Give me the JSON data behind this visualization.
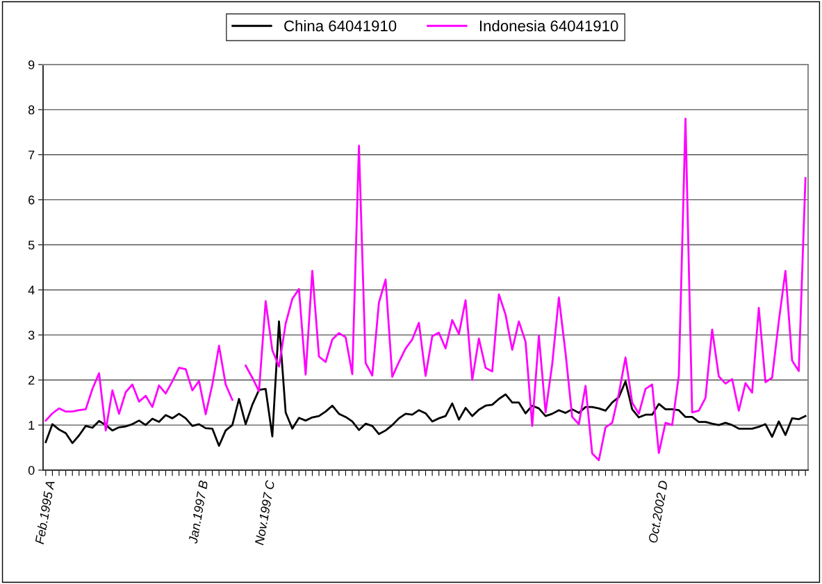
{
  "chart_data": {
    "type": "line",
    "categories": [
      "Feb.1995 A",
      null,
      null,
      null,
      null,
      null,
      null,
      null,
      null,
      null,
      null,
      null,
      null,
      null,
      null,
      null,
      null,
      null,
      null,
      null,
      null,
      null,
      null,
      "Jan.1997 B",
      null,
      null,
      null,
      null,
      null,
      null,
      null,
      null,
      null,
      "Nov.1997 C",
      null,
      null,
      null,
      null,
      null,
      null,
      null,
      null,
      null,
      null,
      null,
      null,
      null,
      null,
      null,
      null,
      null,
      null,
      null,
      null,
      null,
      null,
      null,
      null,
      null,
      null,
      null,
      null,
      null,
      null,
      null,
      null,
      null,
      null,
      null,
      null,
      null,
      null,
      null,
      null,
      null,
      null,
      null,
      null,
      null,
      null,
      null,
      null,
      null,
      null,
      null,
      null,
      null,
      null,
      null,
      null,
      null,
      null,
      "Oct.2002 D",
      null,
      null,
      null,
      null,
      null,
      null,
      null,
      null,
      null,
      null,
      null,
      null,
      null,
      null,
      null,
      null,
      null,
      null,
      null,
      null,
      null,
      null
    ],
    "series": [
      {
        "name": "China 64041910",
        "color": "#000000",
        "values": [
          0.62,
          1.02,
          0.9,
          0.82,
          0.6,
          0.77,
          0.98,
          0.94,
          1.09,
          1.0,
          0.88,
          0.95,
          0.97,
          1.02,
          1.1,
          1.0,
          1.14,
          1.07,
          1.22,
          1.15,
          1.25,
          1.15,
          0.98,
          1.02,
          0.93,
          0.92,
          0.54,
          0.88,
          1.0,
          1.58,
          1.02,
          1.45,
          1.78,
          1.8,
          0.75,
          3.3,
          1.28,
          0.92,
          1.16,
          1.1,
          1.17,
          1.2,
          1.3,
          1.43,
          1.25,
          1.18,
          1.08,
          0.89,
          1.03,
          0.98,
          0.8,
          0.88,
          1.0,
          1.15,
          1.25,
          1.23,
          1.33,
          1.26,
          1.08,
          1.15,
          1.2,
          1.48,
          1.12,
          1.38,
          1.2,
          1.34,
          1.43,
          1.45,
          1.58,
          1.68,
          1.5,
          1.5,
          1.26,
          1.43,
          1.37,
          1.2,
          1.25,
          1.33,
          1.27,
          1.35,
          1.27,
          1.4,
          1.4,
          1.37,
          1.32,
          1.5,
          1.62,
          1.97,
          1.35,
          1.17,
          1.23,
          1.23,
          1.47,
          1.35,
          1.35,
          1.33,
          1.18,
          1.18,
          1.07,
          1.07,
          1.03,
          1.0,
          1.05,
          1.0,
          0.92,
          0.92,
          0.92,
          0.96,
          1.02,
          0.74,
          1.08,
          0.78,
          1.15,
          1.13,
          1.2
        ]
      },
      {
        "name": "Indonesia 64041910",
        "color": "#ff00ff",
        "values": [
          1.1,
          1.26,
          1.37,
          1.3,
          1.3,
          1.33,
          1.35,
          1.8,
          2.15,
          0.88,
          1.77,
          1.25,
          1.73,
          1.9,
          1.52,
          1.65,
          1.4,
          1.88,
          1.7,
          1.97,
          2.27,
          2.24,
          1.77,
          1.98,
          1.24,
          1.9,
          2.76,
          1.9,
          1.56,
          null,
          2.32,
          2.05,
          1.75,
          3.75,
          2.66,
          2.3,
          3.25,
          3.8,
          4.02,
          2.12,
          4.42,
          2.52,
          2.4,
          2.9,
          3.04,
          2.95,
          2.13,
          7.2,
          2.38,
          2.1,
          3.72,
          4.23,
          2.07,
          2.4,
          2.7,
          2.9,
          3.27,
          2.09,
          2.97,
          3.05,
          2.7,
          3.33,
          3.02,
          3.77,
          2.0,
          2.92,
          2.27,
          2.19,
          3.9,
          3.45,
          2.67,
          3.3,
          2.85,
          0.98,
          2.98,
          1.28,
          2.35,
          3.83,
          2.6,
          1.18,
          1.02,
          1.87,
          0.37,
          0.22,
          0.95,
          1.05,
          1.7,
          2.5,
          1.5,
          1.25,
          1.8,
          1.9,
          0.38,
          1.05,
          1.0,
          2.1,
          7.8,
          1.28,
          1.32,
          1.6,
          3.12,
          2.08,
          1.92,
          2.02,
          1.32,
          1.93,
          1.72,
          3.6,
          1.95,
          2.05,
          3.3,
          4.42,
          2.43,
          2.2,
          6.48
        ]
      }
    ],
    "ylim": [
      0,
      9
    ],
    "yticks": [
      0,
      1,
      2,
      3,
      4,
      5,
      6,
      7,
      8,
      9
    ],
    "grid": "y",
    "legend": "top",
    "marker": "none",
    "line_style": "solid"
  }
}
